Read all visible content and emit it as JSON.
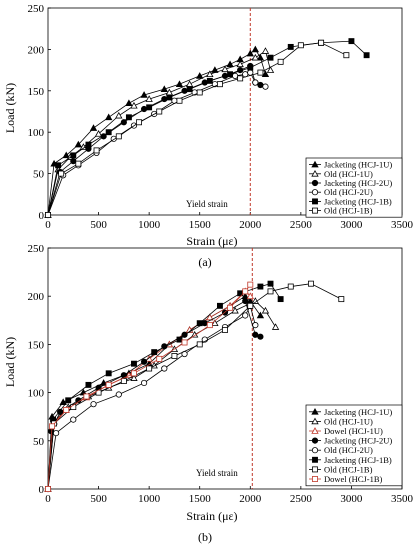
{
  "panels": [
    {
      "caption": "(a)",
      "ylabel": "Load (kN)",
      "xlabel": "Strain (με)",
      "yield_label": "Yield strain"
    },
    {
      "caption": "(b)",
      "ylabel": "Load (kN)",
      "xlabel": "Strain  (με)",
      "yield_label": "Yield strain"
    }
  ],
  "chart_data": [
    {
      "type": "line",
      "caption": "(a)",
      "xlabel": "Strain (με)",
      "ylabel": "Load (kN)",
      "xlim": [
        0,
        3500
      ],
      "ylim": [
        0,
        250
      ],
      "xticks": [
        0,
        500,
        1000,
        1500,
        2000,
        2500,
        3000,
        3500
      ],
      "yticks": [
        0,
        50,
        100,
        150,
        200,
        250
      ],
      "grid": false,
      "legend_position": "bottom-right",
      "yield_strain": 2000,
      "yield_label": "Yield strain",
      "series": [
        {
          "name": "Jacketing (HCJ-1U)",
          "marker": "triangle-filled",
          "x": [
            0,
            60,
            180,
            300,
            450,
            600,
            800,
            950,
            1150,
            1300,
            1500,
            1650,
            1800,
            1900,
            2000,
            2050,
            2100,
            2150
          ],
          "y": [
            0,
            62,
            72,
            85,
            105,
            118,
            135,
            145,
            152,
            158,
            168,
            175,
            182,
            188,
            195,
            200,
            190,
            170
          ]
        },
        {
          "name": "Old (HCJ-1U)",
          "marker": "triangle-open",
          "x": [
            0,
            100,
            220,
            350,
            500,
            700,
            850,
            1000,
            1200,
            1400,
            1600,
            1750,
            1900,
            2050,
            2150,
            2200
          ],
          "y": [
            0,
            55,
            70,
            82,
            98,
            120,
            132,
            140,
            148,
            158,
            170,
            176,
            182,
            190,
            198,
            175
          ]
        },
        {
          "name": "Jacketing (HCJ-2U)",
          "marker": "circle-filled",
          "x": [
            0,
            120,
            250,
            400,
            550,
            750,
            950,
            1150,
            1350,
            1550,
            1750,
            1900,
            2000,
            2050,
            2100
          ],
          "y": [
            0,
            52,
            65,
            80,
            95,
            112,
            128,
            140,
            150,
            160,
            168,
            175,
            180,
            160,
            157
          ]
        },
        {
          "name": "Old (HCJ-2U)",
          "marker": "circle-open",
          "x": [
            0,
            150,
            300,
            480,
            650,
            850,
            1050,
            1250,
            1450,
            1650,
            1850,
            1950,
            2000,
            2050,
            2150
          ],
          "y": [
            0,
            48,
            60,
            75,
            92,
            108,
            122,
            138,
            148,
            158,
            168,
            170,
            172,
            160,
            155
          ]
        },
        {
          "name": "Jacketing (HCJ-1B)",
          "marker": "square-filled",
          "x": [
            0,
            100,
            250,
            400,
            600,
            800,
            1000,
            1200,
            1400,
            1600,
            1800,
            2000,
            2200,
            2400,
            2700,
            3000,
            3150
          ],
          "y": [
            0,
            60,
            72,
            85,
            100,
            118,
            130,
            142,
            152,
            162,
            170,
            178,
            190,
            203,
            208,
            210,
            193
          ]
        },
        {
          "name": "Old (HCJ-1B)",
          "marker": "square-open",
          "x": [
            0,
            130,
            300,
            480,
            700,
            900,
            1100,
            1300,
            1500,
            1700,
            1900,
            2100,
            2300,
            2500,
            2700,
            2950
          ],
          "y": [
            0,
            50,
            62,
            78,
            95,
            112,
            125,
            138,
            148,
            158,
            165,
            172,
            185,
            205,
            208,
            193
          ]
        }
      ]
    },
    {
      "type": "line",
      "caption": "(b)",
      "xlabel": "Strain  (με)",
      "ylabel": "Load (kN)",
      "xlim": [
        0,
        3500
      ],
      "ylim": [
        0,
        250
      ],
      "xticks": [
        0,
        500,
        1000,
        1500,
        2000,
        2500,
        3000,
        3500
      ],
      "yticks": [
        0,
        50,
        100,
        150,
        200,
        250
      ],
      "grid": false,
      "legend_position": "bottom-right",
      "yield_strain": 2020,
      "yield_label": "Yield strain",
      "series": [
        {
          "name": "Jacketing (HCJ-1U)",
          "marker": "triangle-filled",
          "x": [
            0,
            40,
            150,
            350,
            550,
            800,
            1000,
            1200,
            1400,
            1600,
            1800,
            1950,
            2000,
            2100
          ],
          "y": [
            0,
            75,
            90,
            100,
            110,
            120,
            130,
            150,
            165,
            178,
            190,
            200,
            195,
            180
          ]
        },
        {
          "name": "Old (HCJ-1U)",
          "marker": "triangle-open",
          "x": [
            0,
            60,
            200,
            400,
            600,
            850,
            1050,
            1250,
            1450,
            1650,
            1850,
            2050,
            2150,
            2250
          ],
          "y": [
            0,
            70,
            85,
            96,
            105,
            115,
            128,
            145,
            160,
            172,
            185,
            195,
            185,
            168
          ]
        },
        {
          "name": "Dowel (HCJ-1U)",
          "marker": "triangle-open-red",
          "x": [
            0,
            50,
            180,
            380,
            600,
            800,
            1000,
            1200,
            1400,
            1600,
            1800,
            1950,
            2000
          ],
          "y": [
            0,
            68,
            82,
            95,
            108,
            118,
            135,
            150,
            165,
            178,
            190,
            205,
            200
          ]
        },
        {
          "name": "Jacketing (HCJ-2U)",
          "marker": "circle-filled",
          "x": [
            0,
            30,
            120,
            300,
            500,
            750,
            950,
            1150,
            1350,
            1550,
            1750,
            1950,
            2050,
            2100
          ],
          "y": [
            0,
            60,
            80,
            92,
            105,
            118,
            132,
            148,
            160,
            172,
            183,
            195,
            160,
            158
          ]
        },
        {
          "name": "Old (HCJ-2U)",
          "marker": "circle-open",
          "x": [
            0,
            80,
            250,
            450,
            700,
            950,
            1150,
            1350,
            1550,
            1750,
            1950,
            2000,
            2050
          ],
          "y": [
            0,
            58,
            72,
            88,
            98,
            110,
            125,
            140,
            155,
            168,
            180,
            190,
            170
          ]
        },
        {
          "name": "Jacketing (HCJ-1B)",
          "marker": "square-filled",
          "x": [
            0,
            50,
            200,
            400,
            600,
            850,
            1050,
            1300,
            1500,
            1700,
            1900,
            2100,
            2200,
            2300
          ],
          "y": [
            0,
            72,
            92,
            108,
            120,
            130,
            142,
            155,
            172,
            190,
            203,
            210,
            213,
            197
          ]
        },
        {
          "name": "Old (HCJ-1B)",
          "marker": "square-open",
          "x": [
            0,
            60,
            250,
            500,
            750,
            1000,
            1250,
            1500,
            1750,
            2000,
            2200,
            2400,
            2600,
            2900
          ],
          "y": [
            0,
            68,
            85,
            100,
            112,
            125,
            138,
            150,
            165,
            190,
            205,
            210,
            213,
            197
          ]
        },
        {
          "name": "Dowel (HCJ-1B)",
          "marker": "square-open-red",
          "x": [
            0,
            40,
            180,
            380,
            600,
            850,
            1100,
            1350,
            1600,
            1800,
            1950,
            2000
          ],
          "y": [
            0,
            65,
            82,
            96,
            108,
            120,
            135,
            152,
            170,
            188,
            205,
            212
          ]
        }
      ]
    }
  ]
}
